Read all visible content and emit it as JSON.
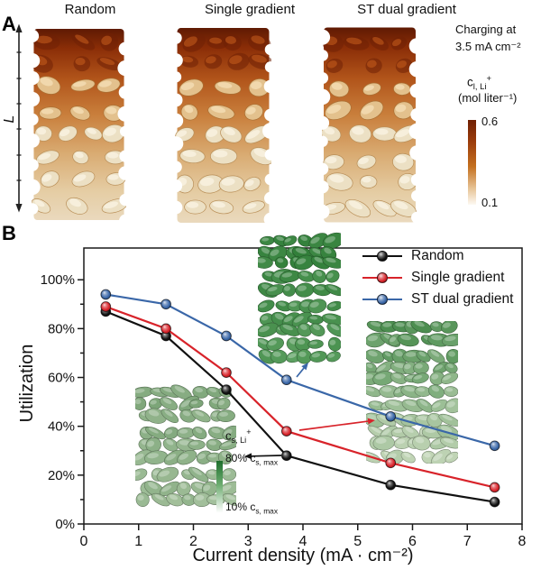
{
  "panel_a": {
    "label": "A",
    "titles": {
      "random": "Random",
      "single": "Single gradient",
      "dual": "ST dual gradient"
    },
    "length_axis_label": "L",
    "charging_note": {
      "line1": "Charging at",
      "line2": "3.5 mA cm⁻²"
    },
    "colorbar": {
      "symbol_base": "c",
      "symbol_sub": "l, Li",
      "symbol_sup": "+",
      "units": "(mol liter⁻¹)",
      "max": "0.6",
      "min": "0.1",
      "color_top": "#6f2003",
      "color_bottom": "#fdfaf3"
    }
  },
  "panel_b": {
    "label": "B",
    "inset_colorbar": {
      "symbol_base": "c",
      "symbol_sub": "s, Li",
      "symbol_sup": "+",
      "top_prefix": "80% c",
      "top_sub": "s, max",
      "bottom_prefix": "10% c",
      "bottom_sub": "s, max",
      "color_top": "#1e6f2d",
      "color_bottom": "#ffffff"
    }
  },
  "chart_data": {
    "type": "line",
    "title": "",
    "xlabel": "Current density (mA · cm⁻²)",
    "ylabel": "Utilization",
    "x": [
      0.4,
      1.5,
      2.6,
      3.7,
      5.6,
      7.5
    ],
    "series": [
      {
        "name": "Random",
        "color": "#111111",
        "values": [
          87,
          77,
          55,
          28,
          16,
          9
        ]
      },
      {
        "name": "Single gradient",
        "color": "#d8232a",
        "values": [
          89,
          80,
          62,
          38,
          25,
          15
        ]
      },
      {
        "name": "ST dual gradient",
        "color": "#3a67a8",
        "values": [
          94,
          90,
          77,
          59,
          44,
          32
        ]
      }
    ],
    "xlim": [
      0,
      8
    ],
    "ylim": [
      0,
      100
    ],
    "xticks": [
      0,
      1,
      2,
      3,
      4,
      5,
      6,
      7,
      8
    ],
    "ytick_values": [
      0,
      20,
      40,
      60,
      80,
      100
    ],
    "ytick_labels": [
      "0%",
      "20%",
      "40%",
      "60%",
      "80%",
      "100%"
    ],
    "y_minor_step": 10,
    "grid": false,
    "legend_position": "top-right"
  }
}
